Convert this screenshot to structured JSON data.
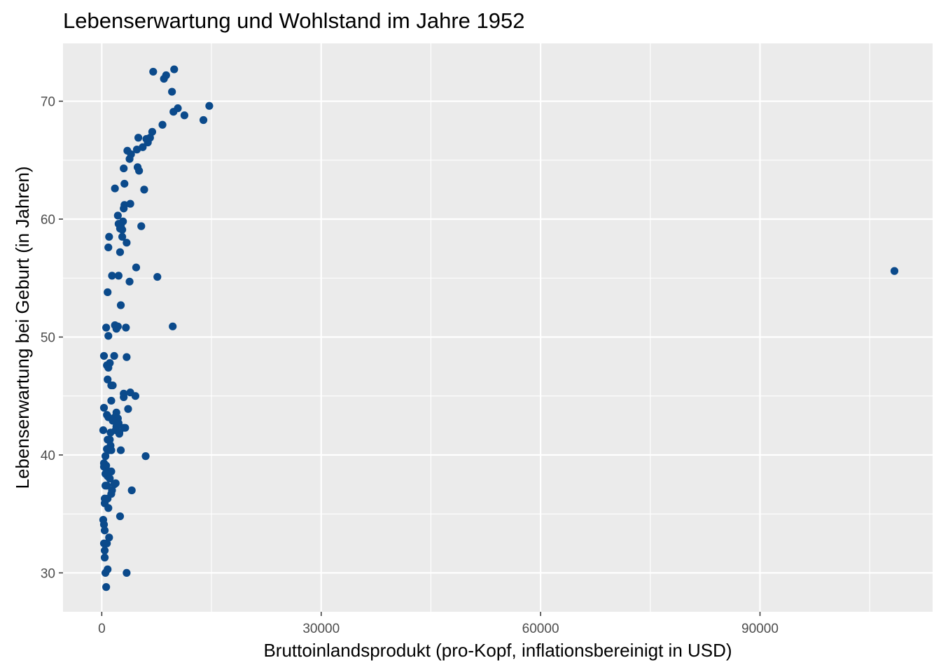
{
  "chart_data": {
    "type": "scatter",
    "title": "Lebenserwartung und Wohlstand im Jahre 1952",
    "xlabel": "Bruttoinlandsprodukt (pro-Kopf, inflationsbereinigt in USD)",
    "ylabel": "Lebenserwartung bei Geburt (in Jahren)",
    "xlim": [
      -5300,
      113600
    ],
    "ylim": [
      26.7,
      74.9
    ],
    "x_ticks": [
      0,
      30000,
      60000,
      90000
    ],
    "x_tick_labels": [
      "0",
      "30000",
      "60000",
      "90000"
    ],
    "y_ticks": [
      30,
      40,
      50,
      60,
      70
    ],
    "y_tick_labels": [
      "30",
      "40",
      "50",
      "60",
      "70"
    ],
    "grid": true,
    "point_color": "#0b4a8b",
    "panel_background": "#ebebeb",
    "grid_color": "#ffffff",
    "series": [
      {
        "points": [
          [
            108382,
            55.6
          ],
          [
            7030,
            72.5
          ],
          [
            9900,
            72.7
          ],
          [
            8800,
            72.2
          ],
          [
            8500,
            71.9
          ],
          [
            9600,
            70.8
          ],
          [
            14700,
            69.6
          ],
          [
            10400,
            69.4
          ],
          [
            9800,
            69.1
          ],
          [
            11300,
            68.8
          ],
          [
            13900,
            68.4
          ],
          [
            8300,
            68.0
          ],
          [
            6900,
            67.4
          ],
          [
            6600,
            66.9
          ],
          [
            5000,
            66.9
          ],
          [
            6100,
            66.8
          ],
          [
            6300,
            66.5
          ],
          [
            5600,
            66.1
          ],
          [
            4800,
            65.9
          ],
          [
            3500,
            65.8
          ],
          [
            4000,
            65.5
          ],
          [
            3800,
            65.1
          ],
          [
            3000,
            64.3
          ],
          [
            4900,
            64.4
          ],
          [
            5100,
            64.1
          ],
          [
            3100,
            63.0
          ],
          [
            1800,
            62.6
          ],
          [
            5800,
            62.5
          ],
          [
            3100,
            61.2
          ],
          [
            3900,
            61.3
          ],
          [
            3000,
            60.9
          ],
          [
            2200,
            60.3
          ],
          [
            2900,
            59.8
          ],
          [
            2300,
            59.6
          ],
          [
            2600,
            59.4
          ],
          [
            5400,
            59.4
          ],
          [
            2500,
            59.2
          ],
          [
            2800,
            59.1
          ],
          [
            2800,
            58.5
          ],
          [
            1000,
            58.5
          ],
          [
            3400,
            58.0
          ],
          [
            900,
            57.6
          ],
          [
            2500,
            57.2
          ],
          [
            4700,
            55.9
          ],
          [
            1400,
            55.2
          ],
          [
            2300,
            55.2
          ],
          [
            7600,
            55.1
          ],
          [
            3800,
            54.7
          ],
          [
            800,
            53.8
          ],
          [
            2600,
            52.7
          ],
          [
            9700,
            50.9
          ],
          [
            600,
            50.8
          ],
          [
            1800,
            51.0
          ],
          [
            2000,
            50.7
          ],
          [
            2200,
            50.9
          ],
          [
            3300,
            50.8
          ],
          [
            900,
            50.1
          ],
          [
            300,
            48.4
          ],
          [
            1700,
            48.4
          ],
          [
            3400,
            48.3
          ],
          [
            1100,
            47.8
          ],
          [
            700,
            47.6
          ],
          [
            900,
            47.4
          ],
          [
            800,
            46.4
          ],
          [
            1300,
            45.9
          ],
          [
            1500,
            45.9
          ],
          [
            3000,
            45.2
          ],
          [
            3900,
            45.3
          ],
          [
            4600,
            45.0
          ],
          [
            3000,
            44.9
          ],
          [
            1300,
            44.6
          ],
          [
            300,
            44.0
          ],
          [
            3600,
            43.9
          ],
          [
            2000,
            43.6
          ],
          [
            700,
            43.4
          ],
          [
            900,
            43.2
          ],
          [
            1800,
            43.2
          ],
          [
            2200,
            43.1
          ],
          [
            1500,
            42.9
          ],
          [
            2300,
            42.7
          ],
          [
            2000,
            42.4
          ],
          [
            3000,
            42.3
          ],
          [
            3200,
            42.3
          ],
          [
            200,
            42.1
          ],
          [
            1900,
            42.1
          ],
          [
            2400,
            41.9
          ],
          [
            1200,
            41.9
          ],
          [
            2400,
            41.8
          ],
          [
            800,
            41.3
          ],
          [
            1100,
            41.3
          ],
          [
            1200,
            40.8
          ],
          [
            700,
            40.5
          ],
          [
            1000,
            40.4
          ],
          [
            2600,
            40.4
          ],
          [
            1300,
            40.4
          ],
          [
            6000,
            39.9
          ],
          [
            500,
            39.9
          ],
          [
            300,
            39.3
          ],
          [
            600,
            39.1
          ],
          [
            300,
            39.0
          ],
          [
            1300,
            38.6
          ],
          [
            900,
            38.6
          ],
          [
            500,
            38.4
          ],
          [
            800,
            38.2
          ],
          [
            1100,
            38.0
          ],
          [
            1900,
            37.6
          ],
          [
            1700,
            37.5
          ],
          [
            500,
            37.4
          ],
          [
            700,
            37.4
          ],
          [
            1400,
            37.0
          ],
          [
            4100,
            37.0
          ],
          [
            1300,
            36.7
          ],
          [
            400,
            36.3
          ],
          [
            800,
            36.3
          ],
          [
            400,
            35.9
          ],
          [
            900,
            35.5
          ],
          [
            2500,
            34.8
          ],
          [
            200,
            34.5
          ],
          [
            300,
            34.1
          ],
          [
            400,
            33.6
          ],
          [
            1000,
            33.0
          ],
          [
            700,
            32.5
          ],
          [
            300,
            32.5
          ],
          [
            400,
            31.9
          ],
          [
            400,
            31.3
          ],
          [
            800,
            30.3
          ],
          [
            500,
            30.0
          ],
          [
            3400,
            30.0
          ],
          [
            600,
            28.8
          ]
        ]
      }
    ]
  }
}
